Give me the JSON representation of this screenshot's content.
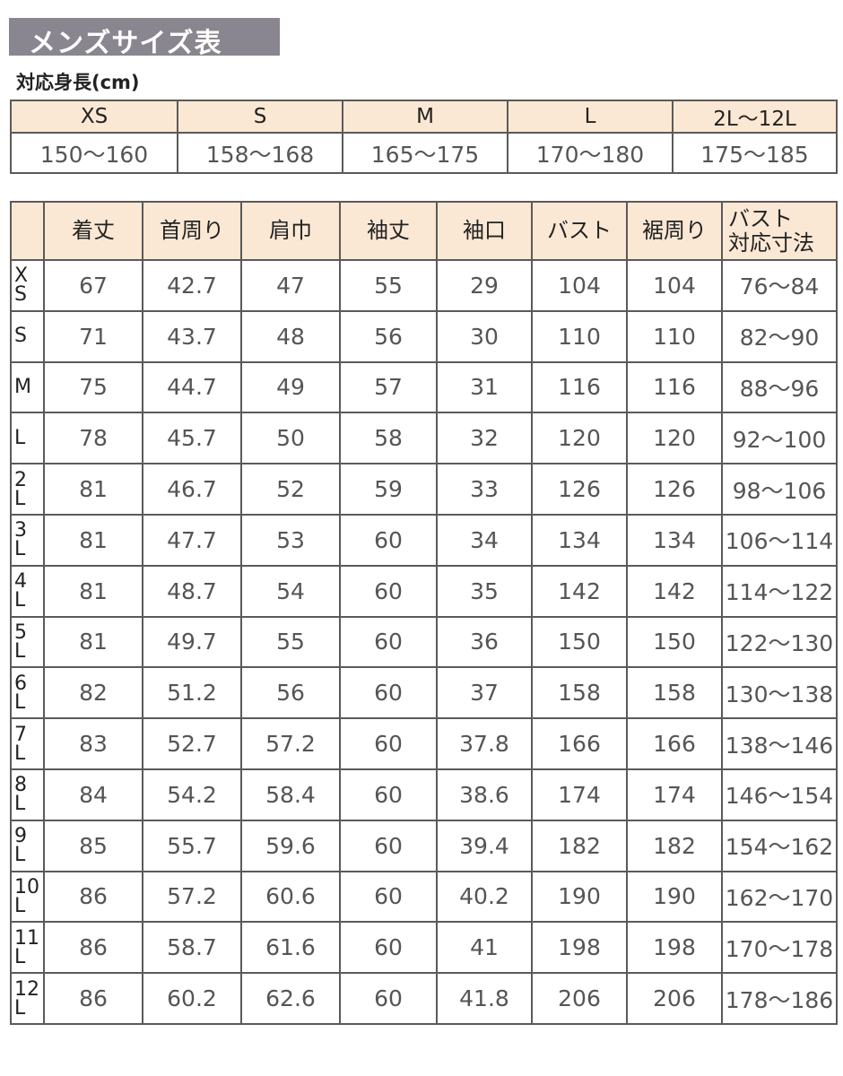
{
  "title": "メンズサイズ表",
  "subtitle": "対応身長(cm)",
  "height_table": {
    "sizes": [
      "XS",
      "S",
      "M",
      "L",
      "2L〜12L"
    ],
    "heights": [
      "150〜160",
      "158〜168",
      "165〜175",
      "170〜180",
      "175〜185"
    ]
  },
  "spec_table": {
    "headers": [
      "",
      "着丈",
      "首周り",
      "肩巾",
      "袖丈",
      "袖口",
      "バスト",
      "裾周り",
      "バスト\n対応寸法"
    ],
    "rows": [
      {
        "size": [
          "X",
          "S"
        ],
        "values": [
          "67",
          "42.7",
          "47",
          "55",
          "29",
          "104",
          "104",
          "76〜84"
        ]
      },
      {
        "size": [
          "S"
        ],
        "values": [
          "71",
          "43.7",
          "48",
          "56",
          "30",
          "110",
          "110",
          "82〜90"
        ]
      },
      {
        "size": [
          "M"
        ],
        "values": [
          "75",
          "44.7",
          "49",
          "57",
          "31",
          "116",
          "116",
          "88〜96"
        ]
      },
      {
        "size": [
          "L"
        ],
        "values": [
          "78",
          "45.7",
          "50",
          "58",
          "32",
          "120",
          "120",
          "92〜100"
        ]
      },
      {
        "size": [
          "2",
          "L"
        ],
        "values": [
          "81",
          "46.7",
          "52",
          "59",
          "33",
          "126",
          "126",
          "98〜106"
        ]
      },
      {
        "size": [
          "3",
          "L"
        ],
        "values": [
          "81",
          "47.7",
          "53",
          "60",
          "34",
          "134",
          "134",
          "106〜114"
        ]
      },
      {
        "size": [
          "4",
          "L"
        ],
        "values": [
          "81",
          "48.7",
          "54",
          "60",
          "35",
          "142",
          "142",
          "114〜122"
        ]
      },
      {
        "size": [
          "5",
          "L"
        ],
        "values": [
          "81",
          "49.7",
          "55",
          "60",
          "36",
          "150",
          "150",
          "122〜130"
        ]
      },
      {
        "size": [
          "6",
          "L"
        ],
        "values": [
          "82",
          "51.2",
          "56",
          "60",
          "37",
          "158",
          "158",
          "130〜138"
        ]
      },
      {
        "size": [
          "7",
          "L"
        ],
        "values": [
          "83",
          "52.7",
          "57.2",
          "60",
          "37.8",
          "166",
          "166",
          "138〜146"
        ]
      },
      {
        "size": [
          "8",
          "L"
        ],
        "values": [
          "84",
          "54.2",
          "58.4",
          "60",
          "38.6",
          "174",
          "174",
          "146〜154"
        ]
      },
      {
        "size": [
          "9",
          "L"
        ],
        "values": [
          "85",
          "55.7",
          "59.6",
          "60",
          "39.4",
          "182",
          "182",
          "154〜162"
        ]
      },
      {
        "size": [
          "10",
          "L"
        ],
        "values": [
          "86",
          "57.2",
          "60.6",
          "60",
          "40.2",
          "190",
          "190",
          "162〜170"
        ]
      },
      {
        "size": [
          "11",
          "L"
        ],
        "values": [
          "86",
          "58.7",
          "61.6",
          "60",
          "41",
          "198",
          "198",
          "170〜178"
        ]
      },
      {
        "size": [
          "12",
          "L"
        ],
        "values": [
          "86",
          "60.2",
          "62.6",
          "60",
          "41.8",
          "206",
          "206",
          "178〜186"
        ]
      }
    ]
  },
  "colors": {
    "title_bg": "#8a8690",
    "header_bg": "#fbe8d4",
    "border": "#5a5a5a"
  }
}
